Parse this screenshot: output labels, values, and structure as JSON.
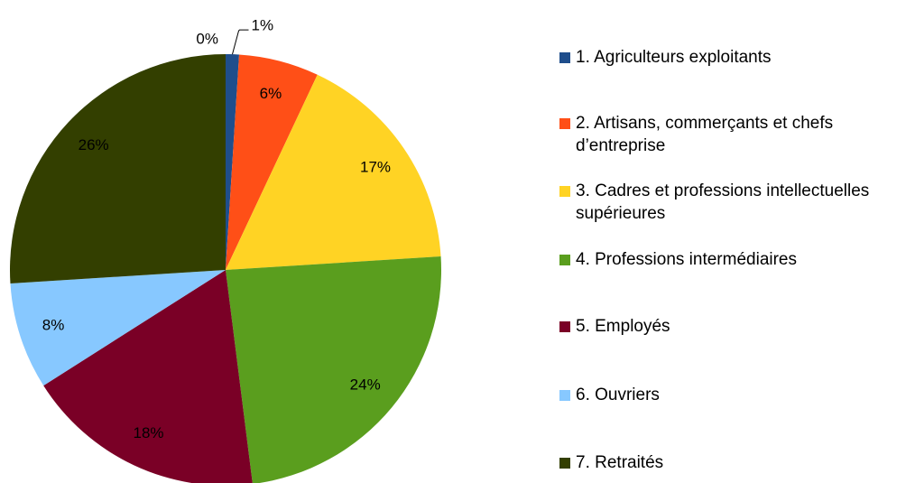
{
  "chart_data": {
    "type": "pie",
    "categories": [
      "1. Agriculteurs exploitants",
      "2. Artisans, commerçants et chefs d’entreprise",
      "3. Cadres et professions intellectuelles supérieures",
      "4. Professions intermédiaires",
      "5. Employés",
      "6. Ouvriers",
      "7. Retraités",
      null
    ],
    "values": [
      1,
      6,
      17,
      24,
      18,
      8,
      26,
      0
    ],
    "value_labels": [
      "1%",
      "6%",
      "17%",
      "24%",
      "18%",
      "8%",
      "26%",
      "0%"
    ],
    "colors": [
      "#1f4e8c",
      "#ff4f17",
      "#ffd324",
      "#5a9e1e",
      "#7a0026",
      "#87c8ff",
      "#333f00",
      "#999999"
    ],
    "legend": "right"
  }
}
